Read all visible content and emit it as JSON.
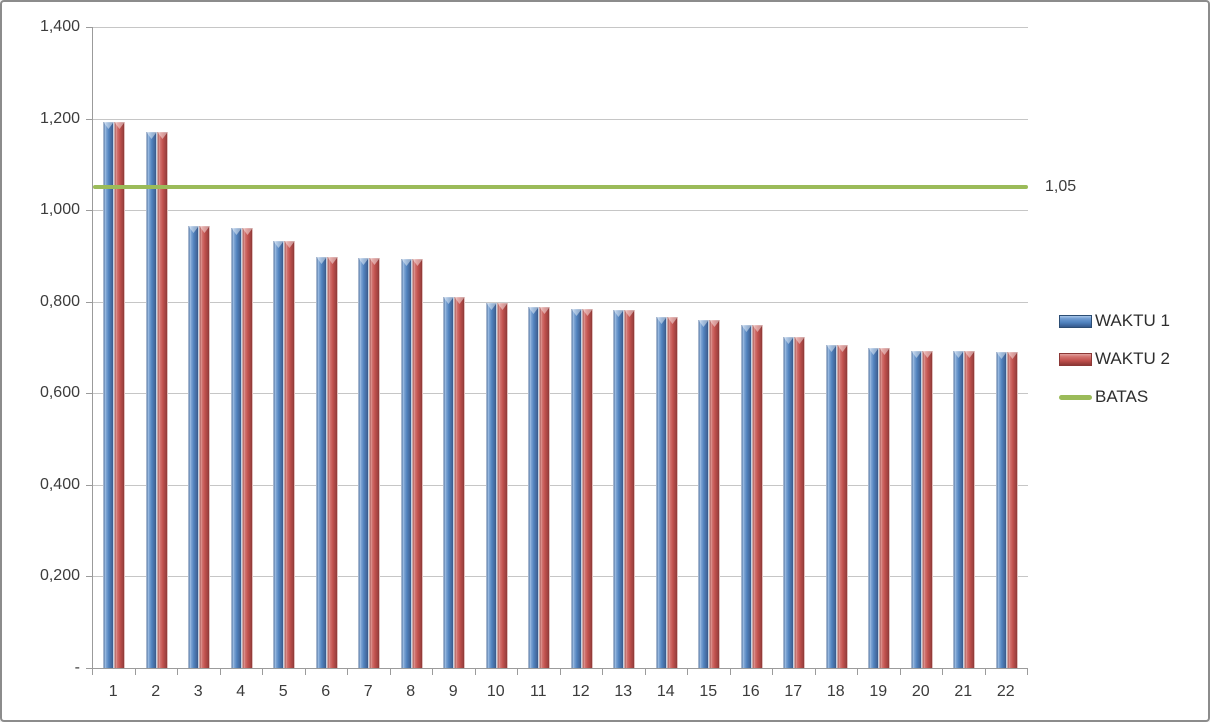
{
  "chart_data": {
    "type": "bar",
    "title": "",
    "categories": [
      "1",
      "2",
      "3",
      "4",
      "5",
      "6",
      "7",
      "8",
      "9",
      "10",
      "11",
      "12",
      "13",
      "14",
      "15",
      "16",
      "17",
      "18",
      "19",
      "20",
      "21",
      "22"
    ],
    "series": [
      {
        "name": "WAKTU 1",
        "color": "#4F81BD",
        "values": [
          1.192,
          1.17,
          0.965,
          0.961,
          0.933,
          0.898,
          0.896,
          0.894,
          0.811,
          0.798,
          0.789,
          0.784,
          0.782,
          0.767,
          0.76,
          0.75,
          0.723,
          0.705,
          0.698,
          0.692,
          0.692,
          0.69
        ]
      },
      {
        "name": "WAKTU 2",
        "color": "#C0504D",
        "values": [
          1.192,
          1.17,
          0.965,
          0.961,
          0.933,
          0.898,
          0.896,
          0.894,
          0.811,
          0.798,
          0.789,
          0.784,
          0.782,
          0.767,
          0.76,
          0.75,
          0.723,
          0.705,
          0.698,
          0.692,
          0.692,
          0.69
        ]
      }
    ],
    "reference_line": {
      "name": "BATAS",
      "value": 1.05,
      "label": "1,05",
      "color": "#9BBB59"
    },
    "y_axis": {
      "ticks": [
        {
          "label": "1,400",
          "value": 1.4
        },
        {
          "label": "1,200",
          "value": 1.2
        },
        {
          "label": "1,000",
          "value": 1.0
        },
        {
          "label": "0,800",
          "value": 0.8
        },
        {
          "label": "0,600",
          "value": 0.6
        },
        {
          "label": "0,400",
          "value": 0.4
        },
        {
          "label": "0,200",
          "value": 0.2
        },
        {
          "label": "-",
          "value": 0
        }
      ]
    },
    "ylim": [
      0,
      1.4
    ],
    "grid": true,
    "legend": {
      "position": "right",
      "items": [
        "WAKTU 1",
        "WAKTU 2",
        "BATAS"
      ]
    }
  },
  "colors": {
    "grid": "#C6C6C6",
    "axis": "#9B9B9B",
    "text": "#3C3C3C",
    "border": "#8C8C8C",
    "background": "#FFFFFF"
  }
}
